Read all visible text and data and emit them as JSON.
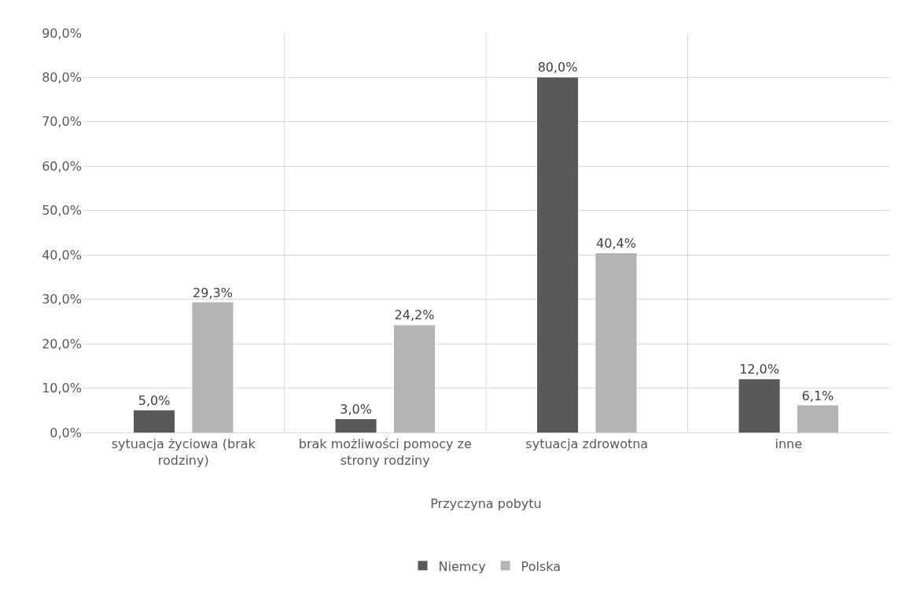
{
  "chart_data": {
    "type": "bar",
    "xlabel": "Przyczyna pobytu",
    "categories": [
      "sytuacja życiowa (brak rodziny)",
      "brak możliwości pomocy ze strony rodziny",
      "sytuacja zdrowotna",
      "inne"
    ],
    "series": [
      {
        "name": "Niemcy",
        "color": "#595959",
        "values": [
          5.0,
          3.0,
          80.0,
          12.0
        ],
        "value_labels": [
          "5,0%",
          "3,0%",
          "80,0%",
          "12,0%"
        ]
      },
      {
        "name": "Polska",
        "color": "#b3b3b3",
        "values": [
          29.3,
          24.2,
          40.4,
          6.1
        ],
        "value_labels": [
          "29,3%",
          "24,2%",
          "40,4%",
          "6,1%"
        ]
      }
    ],
    "ylim": [
      0,
      90
    ],
    "yticks": [
      {
        "value": 0,
        "label": "0,0%"
      },
      {
        "value": 10,
        "label": "10,0%"
      },
      {
        "value": 20,
        "label": "20,0%"
      },
      {
        "value": 30,
        "label": "30,0%"
      },
      {
        "value": 40,
        "label": "40,0%"
      },
      {
        "value": 50,
        "label": "50,0%"
      },
      {
        "value": 60,
        "label": "60,0%"
      },
      {
        "value": 70,
        "label": "70,0%"
      },
      {
        "value": 80,
        "label": "80,0%"
      },
      {
        "value": 90,
        "label": "90,0%"
      }
    ],
    "grid": true,
    "legend": "bottom"
  }
}
